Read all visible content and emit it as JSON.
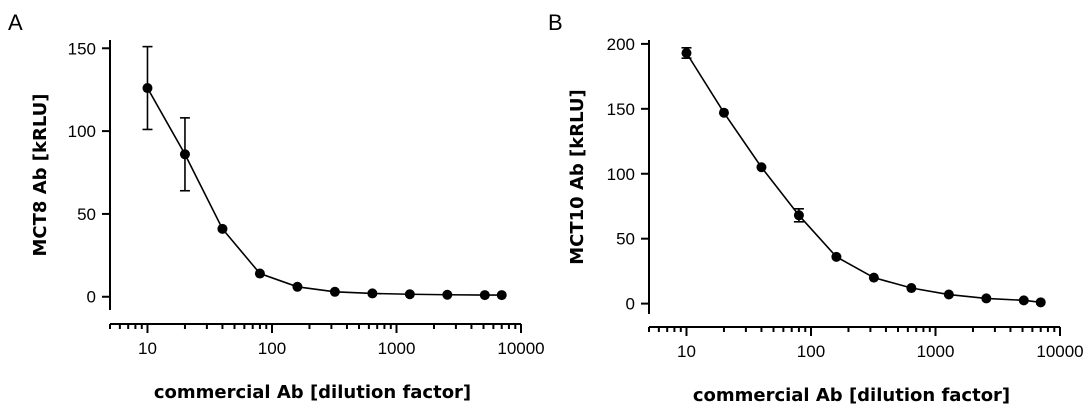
{
  "panels": [
    {
      "letter": "A"
    },
    {
      "letter": "B"
    }
  ],
  "chart_data": [
    {
      "type": "line",
      "panel": "A",
      "xlabel": "commercial Ab [dilution factor]",
      "ylabel": "MCT8 Ab [kRLU]",
      "xscale": "log",
      "xlim": [
        5,
        10000
      ],
      "ylim": [
        -8,
        155
      ],
      "xticks": [
        10,
        100,
        1000,
        10000
      ],
      "xtick_labels": [
        "10",
        "100",
        "1000",
        "10000"
      ],
      "yticks": [
        0,
        50,
        100,
        150
      ],
      "ytick_labels": [
        "0",
        "50",
        "100",
        "150"
      ],
      "series": [
        {
          "x": [
            10,
            20,
            40,
            80,
            160,
            320,
            640,
            1280,
            2560,
            5120,
            7000
          ],
          "y": [
            126,
            86,
            41,
            14,
            6,
            3,
            2,
            1.5,
            1.2,
            1,
            1
          ],
          "error": [
            25,
            22,
            0,
            0,
            0,
            0,
            0,
            0,
            0,
            0,
            0
          ]
        }
      ]
    },
    {
      "type": "line",
      "panel": "B",
      "xlabel": "commercial Ab [dilution factor]",
      "ylabel": "MCT10 Ab [kRLU]",
      "xscale": "log",
      "xlim": [
        5,
        10000
      ],
      "ylim": [
        -8,
        203
      ],
      "xticks": [
        10,
        100,
        1000,
        10000
      ],
      "xtick_labels": [
        "10",
        "100",
        "1000",
        "10000"
      ],
      "yticks": [
        0,
        50,
        100,
        150,
        200
      ],
      "ytick_labels": [
        "0",
        "50",
        "100",
        "150",
        "200"
      ],
      "series": [
        {
          "x": [
            10,
            20,
            40,
            80,
            160,
            320,
            640,
            1280,
            2560,
            5120,
            7000
          ],
          "y": [
            193,
            147,
            105,
            68,
            36,
            20,
            12,
            7,
            4,
            2.5,
            1
          ],
          "error": [
            4,
            0,
            0,
            5,
            0,
            0,
            0,
            0,
            0,
            0,
            0
          ]
        }
      ]
    }
  ]
}
